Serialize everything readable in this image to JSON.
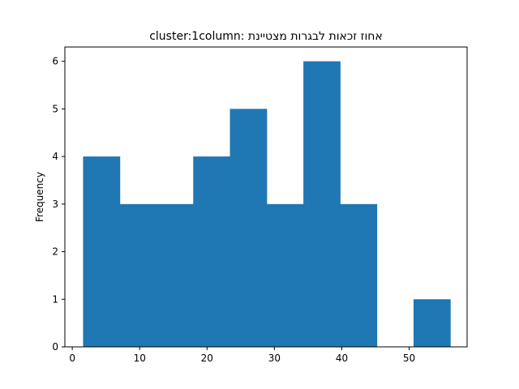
{
  "chart_data": {
    "type": "bar",
    "title": "cluster:1column:     אחוז זכאות לבגרות  מצטיינת",
    "xlabel": "",
    "ylabel": "Frequency",
    "xlim": [
      -1.1,
      58.6
    ],
    "ylim": [
      0,
      6.3
    ],
    "x_ticks": [
      0,
      10,
      20,
      30,
      40,
      50
    ],
    "y_ticks": [
      0,
      1,
      2,
      3,
      4,
      5,
      6
    ],
    "bin_edges": [
      1.6,
      7.05,
      12.5,
      17.95,
      23.4,
      28.85,
      34.3,
      39.75,
      45.2,
      50.65,
      56.1
    ],
    "values": [
      4,
      3,
      3,
      4,
      5,
      3,
      6,
      3,
      0,
      1
    ],
    "bar_color": "#1f77b4",
    "grid": false,
    "legend": "none"
  }
}
